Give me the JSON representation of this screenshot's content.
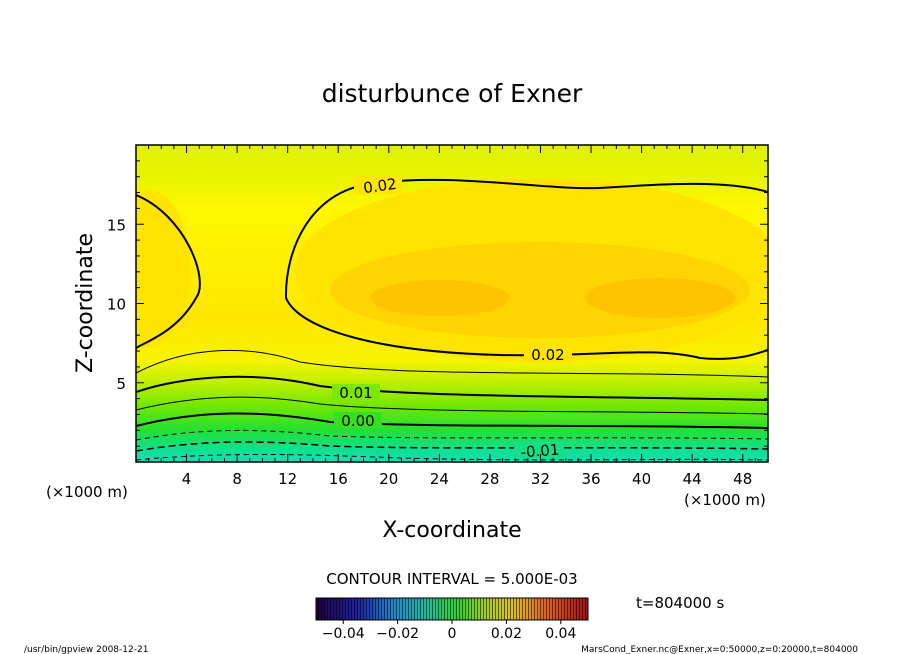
{
  "chart_data": {
    "type": "heatmap",
    "title": "disturbunce of Exner",
    "xlabel": "X-coordinate",
    "ylabel": "Z-coordinate",
    "x_unit_left": "(×1000 m)",
    "x_unit_right": "(×1000 m)",
    "xlim": [
      0,
      50
    ],
    "ylim": [
      0,
      20
    ],
    "xticks": [
      4,
      8,
      12,
      16,
      20,
      24,
      28,
      32,
      36,
      40,
      44,
      48
    ],
    "yticks": [
      5,
      10,
      15
    ],
    "contour_labels": [
      "0.02",
      "0.02",
      "0.01",
      "0.00",
      "-0.01"
    ],
    "contour_interval_text": "CONTOUR INTERVAL = 5.000E-03",
    "time_text": "t=804000  s",
    "colorbar_range": [
      -0.05,
      0.05
    ],
    "colorbar_ticks": [
      "-0.04",
      "-0.02",
      "0",
      "0.02",
      "0.04"
    ],
    "footer_left": "/usr/bin/gpview   2008-12-21",
    "footer_right": "MarsCond_Exner.nc@Exner,x=0:50000,z=0:20000,t=804000"
  }
}
